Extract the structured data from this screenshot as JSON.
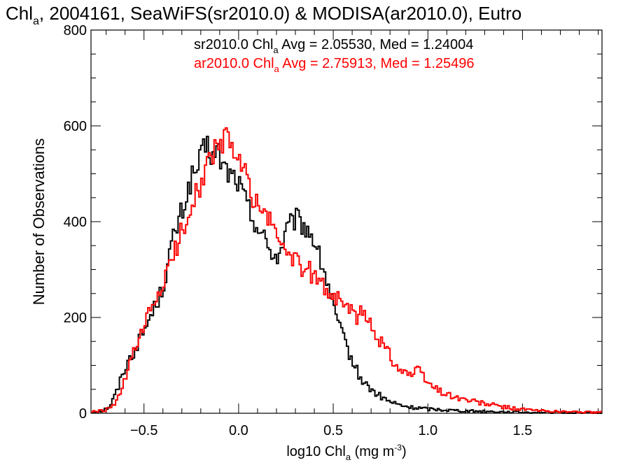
{
  "chart_data": {
    "type": "line",
    "title": {
      "prefix": "Chl",
      "sub": "a",
      "suffix": ", 2004161, SeaWiFS(sr2010.0) & MODISA(ar2010.0), Eutro"
    },
    "xlabel": {
      "prefix": "log10 Chl",
      "sub": "a",
      "mid": " (mg m",
      "sup": "-3",
      "suffix": ")"
    },
    "ylabel": "Number of Observations",
    "xlim": [
      -0.78,
      1.92
    ],
    "ylim": [
      0,
      800
    ],
    "xticks": [
      -0.5,
      0.0,
      0.5,
      1.0,
      1.5
    ],
    "xtick_labels": [
      "−0.5",
      "0.0",
      "0.5",
      "1.0",
      "1.5"
    ],
    "yticks": [
      0,
      200,
      400,
      600,
      800
    ],
    "ytick_labels": [
      "0",
      "200",
      "400",
      "600",
      "800"
    ],
    "grid": false,
    "legend": [
      {
        "prefix": "sr2010.0 Chl",
        "sub": "a",
        "suffix": " Avg = 2.05530, Med = 1.24004",
        "color": "#000000"
      },
      {
        "prefix": "ar2010.0 Chl",
        "sub": "a",
        "suffix": " Avg = 2.75913, Med = 1.25496",
        "color": "#ff0000"
      }
    ],
    "series": [
      {
        "color": "#000000",
        "x": [
          -0.78,
          -0.72,
          -0.68,
          -0.65,
          -0.63,
          -0.61,
          -0.59,
          -0.57,
          -0.55,
          -0.53,
          -0.51,
          -0.49,
          -0.47,
          -0.45,
          -0.43,
          -0.41,
          -0.39,
          -0.37,
          -0.35,
          -0.33,
          -0.31,
          -0.29,
          -0.27,
          -0.25,
          -0.23,
          -0.21,
          -0.19,
          -0.17,
          -0.15,
          -0.13,
          -0.11,
          -0.09,
          -0.07,
          -0.05,
          -0.03,
          -0.01,
          0.01,
          0.03,
          0.05,
          0.07,
          0.09,
          0.11,
          0.13,
          0.15,
          0.17,
          0.19,
          0.21,
          0.23,
          0.25,
          0.27,
          0.29,
          0.31,
          0.33,
          0.35,
          0.37,
          0.39,
          0.41,
          0.43,
          0.45,
          0.47,
          0.49,
          0.51,
          0.53,
          0.55,
          0.57,
          0.59,
          0.61,
          0.63,
          0.65,
          0.67,
          0.69,
          0.71,
          0.73,
          0.75,
          0.77,
          0.79,
          0.81,
          0.83,
          0.85,
          0.87,
          0.89,
          0.91,
          0.95,
          1.0,
          1.05,
          1.1,
          1.15,
          1.2,
          1.3,
          1.4,
          1.5,
          1.6,
          1.75,
          1.9
        ],
        "y": [
          2,
          5,
          15,
          40,
          60,
          90,
          100,
          120,
          130,
          150,
          165,
          180,
          200,
          215,
          235,
          250,
          280,
          320,
          360,
          380,
          410,
          430,
          460,
          490,
          500,
          520,
          540,
          560,
          545,
          530,
          550,
          520,
          510,
          500,
          495,
          490,
          470,
          450,
          430,
          410,
          400,
          380,
          370,
          350,
          340,
          330,
          325,
          350,
          380,
          390,
          400,
          405,
          395,
          390,
          380,
          370,
          350,
          320,
          300,
          270,
          240,
          210,
          180,
          160,
          140,
          120,
          100,
          85,
          70,
          60,
          55,
          45,
          40,
          35,
          30,
          26,
          22,
          20,
          17,
          15,
          14,
          12,
          11,
          9,
          8,
          7,
          6,
          5,
          4,
          3,
          2,
          2,
          1,
          1
        ]
      },
      {
        "color": "#ff0000",
        "x": [
          -0.78,
          -0.72,
          -0.68,
          -0.65,
          -0.63,
          -0.61,
          -0.59,
          -0.57,
          -0.55,
          -0.53,
          -0.51,
          -0.49,
          -0.47,
          -0.45,
          -0.43,
          -0.41,
          -0.39,
          -0.37,
          -0.35,
          -0.33,
          -0.31,
          -0.29,
          -0.27,
          -0.25,
          -0.23,
          -0.21,
          -0.19,
          -0.17,
          -0.15,
          -0.13,
          -0.11,
          -0.09,
          -0.07,
          -0.05,
          -0.03,
          -0.01,
          0.01,
          0.03,
          0.05,
          0.07,
          0.09,
          0.11,
          0.13,
          0.15,
          0.17,
          0.19,
          0.21,
          0.23,
          0.25,
          0.27,
          0.29,
          0.31,
          0.33,
          0.35,
          0.37,
          0.39,
          0.41,
          0.43,
          0.45,
          0.47,
          0.49,
          0.51,
          0.53,
          0.55,
          0.57,
          0.59,
          0.61,
          0.63,
          0.65,
          0.67,
          0.69,
          0.71,
          0.73,
          0.75,
          0.77,
          0.79,
          0.81,
          0.83,
          0.85,
          0.87,
          0.89,
          0.91,
          0.93,
          0.95,
          0.97,
          0.99,
          1.01,
          1.03,
          1.05,
          1.1,
          1.15,
          1.2,
          1.3,
          1.4,
          1.5,
          1.6,
          1.75,
          1.9
        ],
        "y": [
          3,
          5,
          10,
          20,
          35,
          60,
          80,
          110,
          130,
          145,
          165,
          190,
          210,
          225,
          245,
          260,
          280,
          300,
          320,
          345,
          370,
          390,
          410,
          440,
          460,
          470,
          490,
          510,
          530,
          550,
          540,
          560,
          575,
          570,
          555,
          540,
          520,
          500,
          480,
          460,
          440,
          430,
          420,
          410,
          395,
          380,
          370,
          355,
          340,
          330,
          325,
          310,
          300,
          295,
          300,
          290,
          280,
          275,
          265,
          255,
          250,
          245,
          235,
          240,
          220,
          215,
          205,
          200,
          210,
          200,
          190,
          175,
          165,
          150,
          140,
          130,
          115,
          100,
          95,
          90,
          85,
          80,
          85,
          90,
          80,
          70,
          60,
          55,
          50,
          40,
          33,
          28,
          20,
          13,
          8,
          5,
          3,
          2
        ]
      }
    ]
  }
}
